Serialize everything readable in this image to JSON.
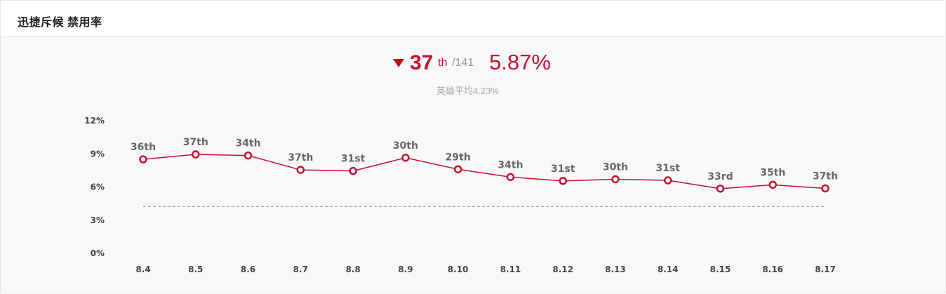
{
  "header": {
    "title": "迅捷斥候 禁用率"
  },
  "summary": {
    "trend": "down",
    "rank": "37",
    "rank_suffix": "th",
    "total": "/141",
    "rate": "5.87%",
    "average": "英雄平均4.23%",
    "accent": "#c8102e"
  },
  "chart_data": {
    "type": "line",
    "categories": [
      "8.4",
      "8.5",
      "8.6",
      "8.7",
      "8.8",
      "8.9",
      "8.10",
      "8.11",
      "8.12",
      "8.13",
      "8.14",
      "8.15",
      "8.16",
      "8.17"
    ],
    "series": [
      {
        "values": [
          8.5,
          8.95,
          8.85,
          7.55,
          7.45,
          8.65,
          7.6,
          6.9,
          6.55,
          6.7,
          6.6,
          5.85,
          6.2,
          5.87
        ],
        "labels": [
          "36th",
          "37th",
          "34th",
          "37th",
          "31st",
          "30th",
          "29th",
          "34th",
          "31st",
          "30th",
          "31st",
          "33rd",
          "35th",
          "37th"
        ],
        "color": "#c8102e"
      }
    ],
    "reference_line": {
      "value": 4.23,
      "style": "dashed",
      "color": "#999999"
    },
    "ylim": [
      0,
      12
    ],
    "yticks": [
      0,
      3,
      6,
      9,
      12
    ],
    "ytick_labels": [
      "0%",
      "3%",
      "6%",
      "9%",
      "12%"
    ],
    "grid": false,
    "legend": "none"
  }
}
